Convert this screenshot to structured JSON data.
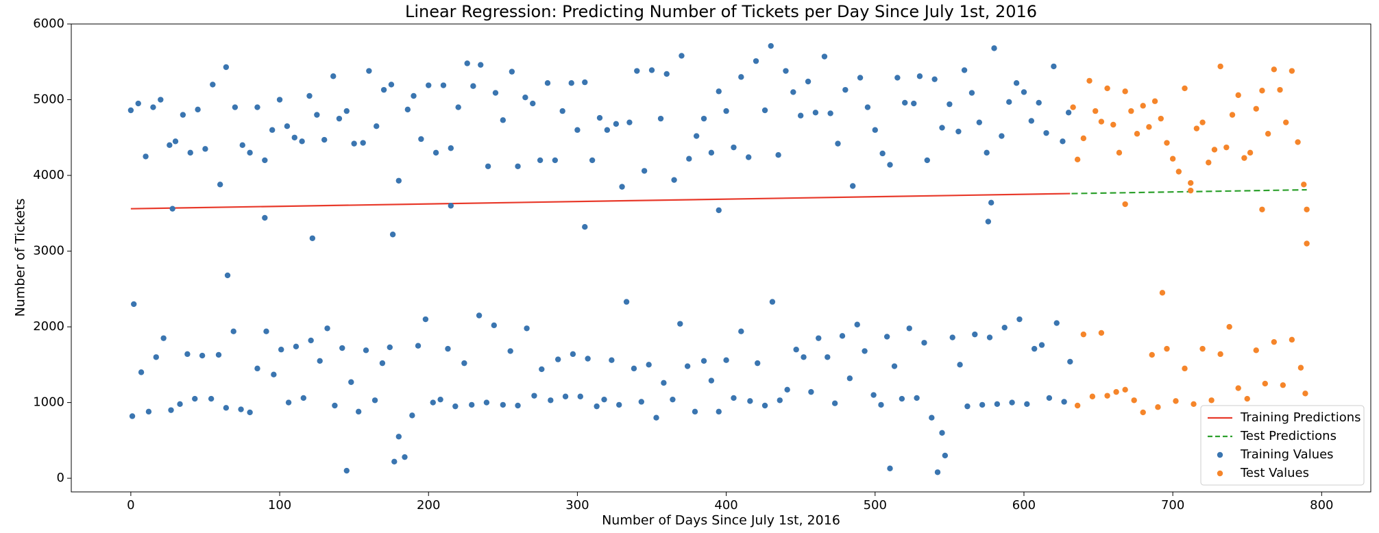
{
  "chart_data": {
    "type": "scatter",
    "title": "Linear Regression: Predicting Number of Tickets per Day Since July 1st, 2016",
    "xlabel": "Number of Days Since July 1st, 2016",
    "ylabel": "Number of Tickets",
    "xlim": [
      -40,
      833
    ],
    "ylim": [
      -180,
      6000
    ],
    "xticks": [
      0,
      100,
      200,
      300,
      400,
      500,
      600,
      700,
      800
    ],
    "yticks": [
      0,
      1000,
      2000,
      3000,
      4000,
      5000,
      6000
    ],
    "grid": false,
    "legend": "lower right",
    "series": [
      {
        "name": "Training Predictions",
        "mark": "line",
        "linestyle": "solid",
        "color": "#e8392a",
        "x": [
          0,
          631
        ],
        "values": [
          3560,
          3760
        ]
      },
      {
        "name": "Test Predictions",
        "mark": "line",
        "linestyle": "dashed",
        "color": "#2ca02c",
        "x": [
          632,
          790
        ],
        "values": [
          3760,
          3810
        ]
      },
      {
        "name": "Training Values",
        "mark": "scatter",
        "color": "#3a75b0",
        "x": [
          0,
          5,
          10,
          15,
          20,
          26,
          30,
          35,
          40,
          45,
          50,
          55,
          60,
          64,
          70,
          75,
          80,
          85,
          90,
          95,
          100,
          105,
          110,
          115,
          120,
          125,
          130,
          136,
          140,
          145,
          150,
          156,
          160,
          165,
          170,
          175,
          180,
          186,
          190,
          195,
          200,
          205,
          210,
          215,
          220,
          226,
          230,
          235,
          240,
          245,
          250,
          256,
          260,
          265,
          270,
          275,
          280,
          285,
          290,
          296,
          300,
          305,
          310,
          315,
          320,
          326,
          330,
          335,
          340,
          345,
          350,
          356,
          360,
          365,
          370,
          375,
          380,
          385,
          390,
          395,
          400,
          405,
          410,
          415,
          420,
          426,
          430,
          435,
          440,
          445,
          450,
          455,
          460,
          466,
          470,
          475,
          480,
          485,
          490,
          495,
          500,
          505,
          510,
          515,
          520,
          526,
          530,
          535,
          540,
          545,
          550,
          556,
          560,
          565,
          570,
          575,
          580,
          585,
          590,
          595,
          600,
          605,
          610,
          615,
          620,
          626,
          630,
          28,
          90,
          122,
          176,
          215,
          305,
          395,
          576,
          578,
          65,
          1,
          2,
          7,
          12,
          17,
          22,
          27,
          33,
          38,
          43,
          48,
          54,
          59,
          64,
          69,
          74,
          80,
          85,
          91,
          96,
          101,
          106,
          111,
          116,
          121,
          127,
          132,
          137,
          142,
          145,
          148,
          153,
          158,
          164,
          169,
          174,
          177,
          180,
          184,
          189,
          193,
          198,
          203,
          208,
          213,
          218,
          224,
          229,
          234,
          239,
          244,
          250,
          255,
          260,
          266,
          271,
          276,
          282,
          287,
          292,
          297,
          302,
          307,
          313,
          318,
          323,
          328,
          333,
          338,
          343,
          348,
          353,
          358,
          364,
          369,
          374,
          379,
          385,
          390,
          395,
          400,
          405,
          410,
          416,
          421,
          426,
          431,
          436,
          441,
          447,
          452,
          457,
          462,
          468,
          473,
          478,
          483,
          488,
          493,
          499,
          504,
          508,
          510,
          513,
          518,
          523,
          528,
          533,
          538,
          542,
          545,
          547,
          552,
          557,
          562,
          567,
          572,
          577,
          582,
          587,
          592,
          597,
          602,
          607,
          612,
          617,
          622,
          627,
          631
        ],
        "values": [
          4860,
          4950,
          4250,
          4900,
          5000,
          4400,
          4450,
          4800,
          4300,
          4870,
          4350,
          5200,
          3880,
          5430,
          4900,
          4400,
          4300,
          4900,
          4200,
          4600,
          5000,
          4650,
          4500,
          4450,
          5050,
          4800,
          4470,
          5310,
          4750,
          4850,
          4420,
          4430,
          5380,
          4650,
          5130,
          5200,
          3930,
          4870,
          5050,
          4480,
          5190,
          4300,
          5190,
          4360,
          4900,
          5480,
          5180,
          5460,
          4120,
          5090,
          4730,
          5370,
          4120,
          5030,
          4950,
          4200,
          5220,
          4200,
          4850,
          5220,
          4600,
          5230,
          4200,
          4760,
          4600,
          4680,
          3850,
          4700,
          5380,
          4060,
          5390,
          4750,
          5340,
          3940,
          5580,
          4220,
          4520,
          4750,
          4300,
          5110,
          4850,
          4370,
          5300,
          4240,
          5510,
          4860,
          5710,
          4270,
          5380,
          5100,
          4790,
          5240,
          4830,
          5570,
          4820,
          4420,
          5130,
          3860,
          5290,
          4900,
          4600,
          4290,
          4140,
          5290,
          4960,
          4950,
          5310,
          4200,
          5270,
          4630,
          4940,
          4580,
          5390,
          5090,
          4700,
          4300,
          5680,
          4520,
          4970,
          5220,
          5100,
          4720,
          4960,
          4560,
          5440,
          4450,
          4830,
          3560,
          3440,
          3170,
          3220,
          3600,
          3320,
          3540,
          3390,
          3640,
          2680,
          820,
          2300,
          1400,
          880,
          1600,
          1850,
          900,
          980,
          1640,
          1050,
          1620,
          1050,
          1630,
          930,
          1940,
          910,
          870,
          1450,
          1940,
          1370,
          1700,
          1000,
          1740,
          1060,
          1820,
          1550,
          1980,
          960,
          1720,
          100,
          1270,
          880,
          1690,
          1030,
          1520,
          1730,
          220,
          550,
          280,
          830,
          1750,
          2100,
          1000,
          1040,
          1710,
          950,
          1520,
          970,
          2150,
          1000,
          2020,
          970,
          1680,
          960,
          1980,
          1090,
          1440,
          1030,
          1570,
          1080,
          1640,
          1080,
          1580,
          950,
          1040,
          1560,
          970,
          2330,
          1450,
          1010,
          1500,
          800,
          1260,
          1040,
          2040,
          1480,
          880,
          1550,
          1290,
          880,
          1560,
          1060,
          1940,
          1020,
          1520,
          960,
          2330,
          1030,
          1170,
          1700,
          1600,
          1140,
          1850,
          1600,
          990,
          1880,
          1320,
          2030,
          1680,
          1100,
          970,
          1870,
          130,
          1480,
          1050,
          1980,
          1060,
          1790,
          800,
          80,
          600,
          300,
          1860,
          1500,
          950,
          1900,
          970,
          1860,
          980,
          1990,
          1000,
          2100,
          980,
          1710,
          1760,
          1060,
          2050,
          1010,
          1540
        ]
      },
      {
        "name": "Test Values",
        "mark": "scatter",
        "color": "#f5852a",
        "x": [
          633,
          636,
          640,
          644,
          648,
          652,
          656,
          660,
          664,
          668,
          672,
          676,
          680,
          684,
          688,
          692,
          696,
          700,
          704,
          708,
          712,
          716,
          720,
          724,
          728,
          732,
          736,
          740,
          744,
          748,
          752,
          756,
          760,
          764,
          768,
          772,
          776,
          780,
          784,
          788,
          790,
          668,
          712,
          760,
          790,
          693,
          636,
          640,
          646,
          652,
          656,
          662,
          668,
          674,
          680,
          686,
          690,
          696,
          702,
          708,
          714,
          720,
          726,
          732,
          738,
          744,
          750,
          756,
          762,
          768,
          774,
          780,
          786,
          789
        ],
        "values": [
          4900,
          4210,
          4490,
          5250,
          4850,
          4710,
          5150,
          4670,
          4300,
          5110,
          4850,
          4550,
          4920,
          4640,
          4980,
          4750,
          4430,
          4220,
          4050,
          5150,
          3900,
          4620,
          4700,
          4170,
          4340,
          5440,
          4370,
          4800,
          5060,
          4230,
          4300,
          4880,
          5120,
          4550,
          5400,
          5130,
          4700,
          5380,
          4440,
          3880,
          3100,
          3620,
          3800,
          3550,
          3550,
          2450,
          960,
          1900,
          1080,
          1920,
          1090,
          1140,
          1170,
          1030,
          870,
          1630,
          940,
          1710,
          1020,
          1450,
          980,
          1710,
          1030,
          1640,
          2000,
          1190,
          1050,
          1690,
          1250,
          1800,
          1230,
          1830,
          1460,
          1120
        ]
      }
    ]
  }
}
